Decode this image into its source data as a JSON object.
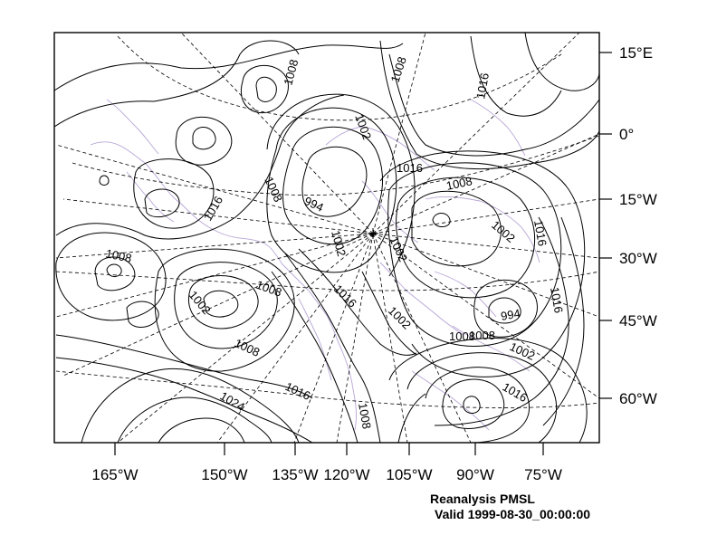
{
  "map": {
    "product": "Reanalysis PMSL",
    "valid_time": "Valid 1999-08-30_00:00:00",
    "bottom_axis_labels": [
      "165°W",
      "150°W",
      "135°W",
      "120°W",
      "105°W",
      "90°W",
      "75°W"
    ],
    "right_axis_labels": [
      "15°E",
      "0°",
      "15°W",
      "30°W",
      "45°W",
      "60°W"
    ],
    "contour_labels": [
      "1008",
      "1008",
      "1016",
      "1002",
      "1016",
      "1008",
      "994",
      "1002",
      "1016",
      "1008",
      "1002",
      "1016",
      "1002",
      "1008",
      "1016",
      "1008",
      "1002",
      "1016",
      "1002",
      "994",
      "1008",
      "1008",
      "1002",
      "1008",
      "1016",
      "1024",
      "1008",
      "1016"
    ],
    "colors": {
      "contour": "#000000",
      "coastline": "#b9a6d6",
      "gridline": "#000000",
      "frame": "#000000"
    }
  }
}
